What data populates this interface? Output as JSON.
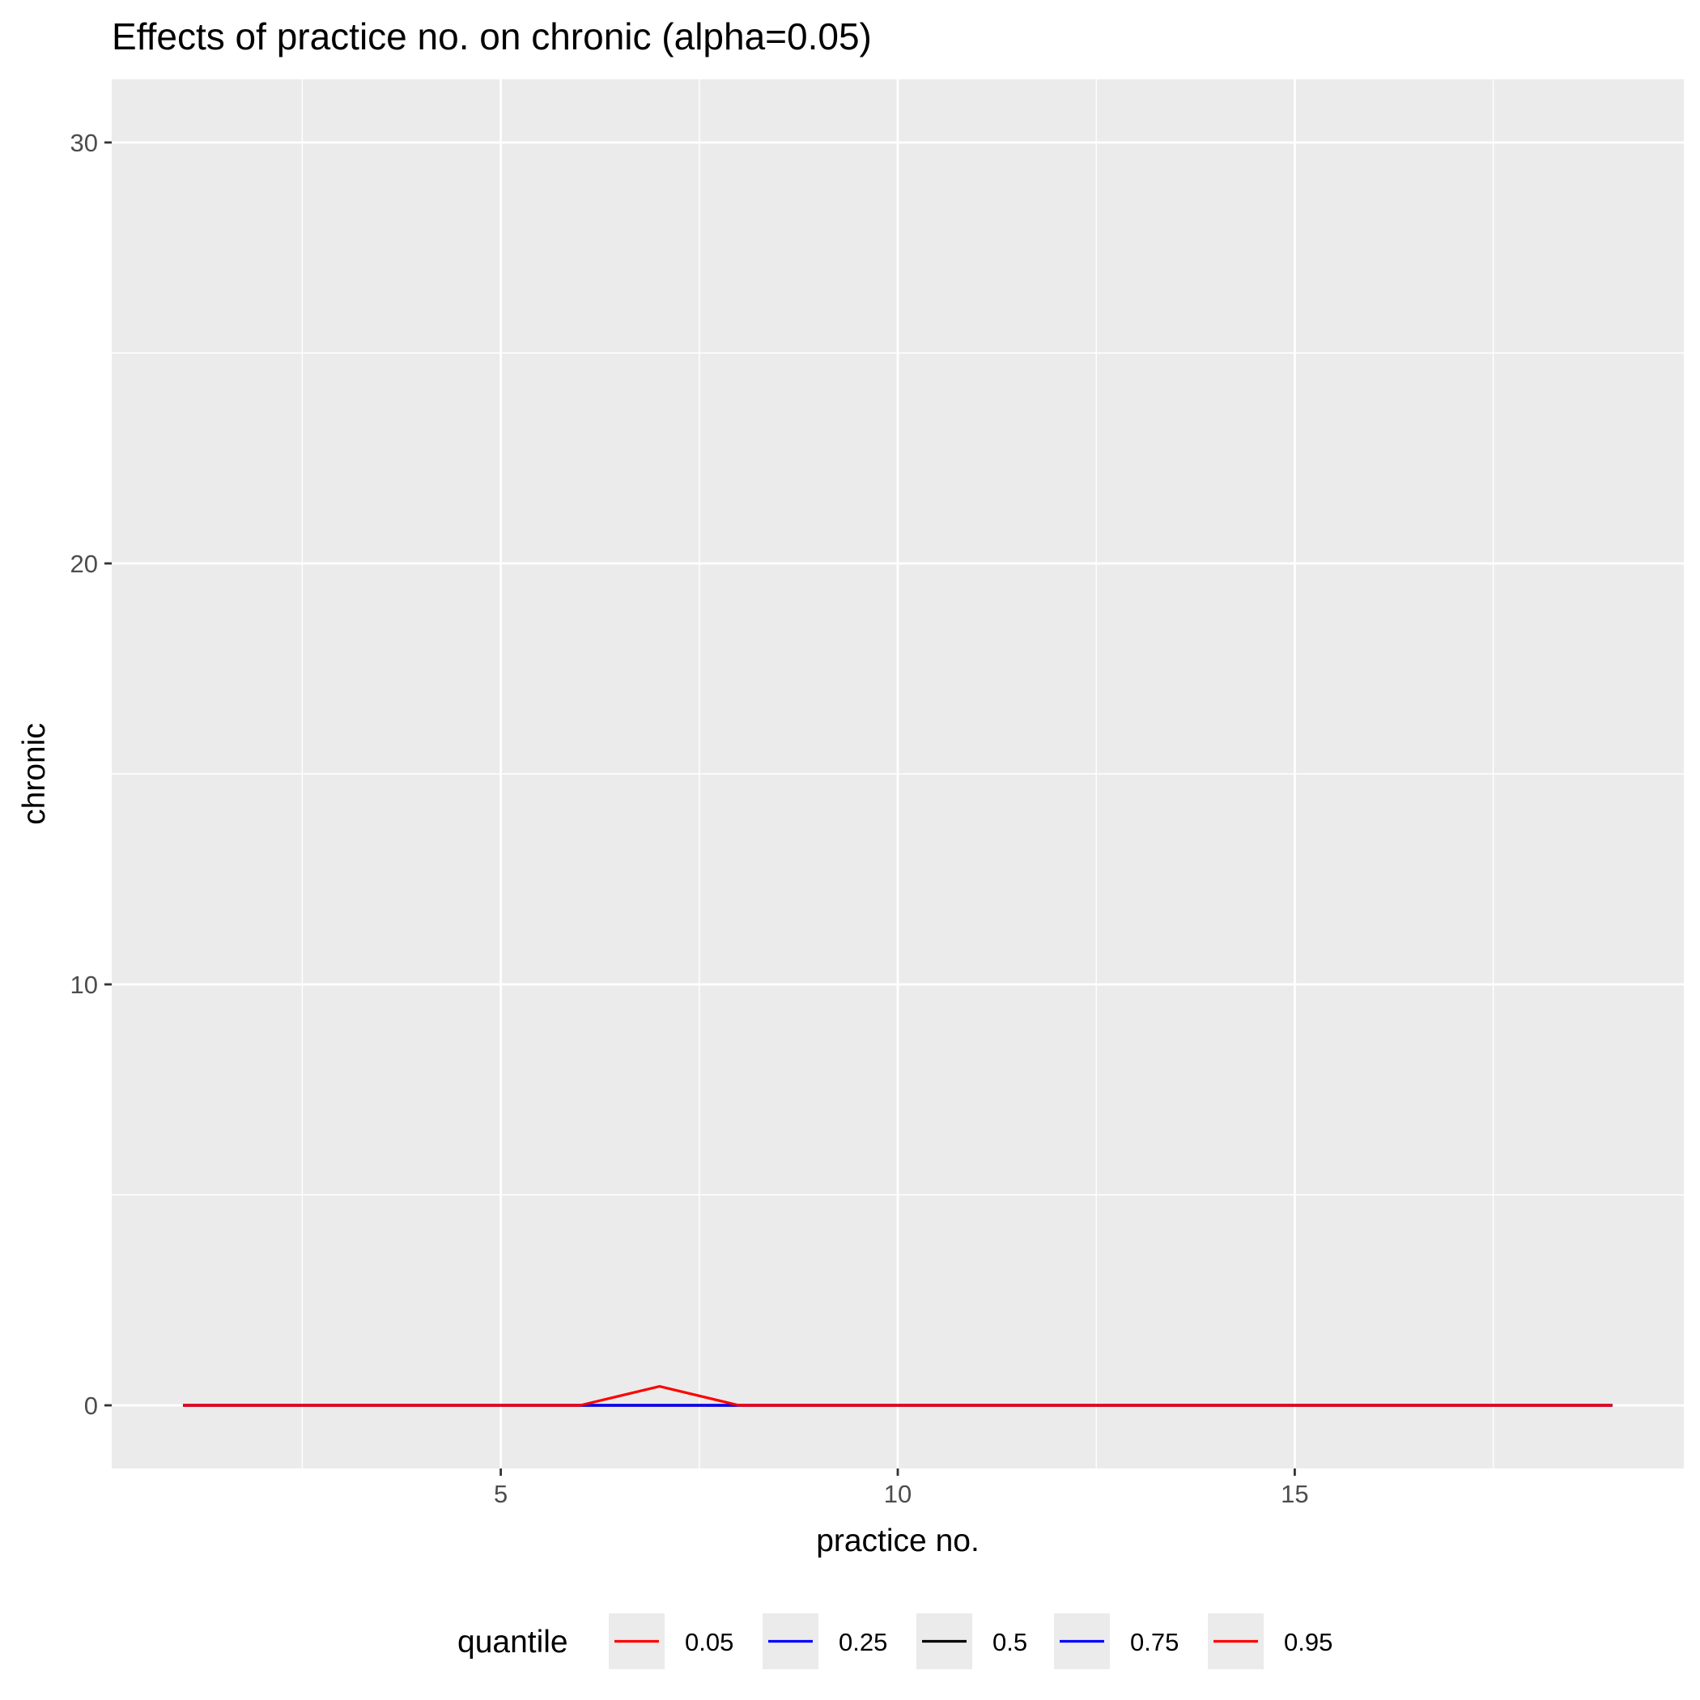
{
  "chart_data": {
    "type": "line",
    "title": "Effects of practice no. on chronic (alpha=0.05)",
    "xlabel": "practice no.",
    "ylabel": "chronic",
    "xlim": [
      0.1,
      19.9
    ],
    "ylim": [
      -1.5,
      31.5
    ],
    "x_ticks": [
      5,
      10,
      15
    ],
    "y_ticks": [
      0,
      10,
      20,
      30
    ],
    "grid": true,
    "panel_background": "#ebebeb",
    "legend": {
      "title": "quantile",
      "position": "bottom"
    },
    "x": [
      1,
      2,
      3,
      4,
      5,
      6,
      7,
      8,
      9,
      10,
      11,
      12,
      13,
      14,
      15,
      16,
      17,
      18,
      19
    ],
    "series": [
      {
        "name": "0.05",
        "color": "#ff0000",
        "values": [
          0,
          0,
          0,
          0,
          0,
          0,
          0,
          0,
          0,
          0,
          0,
          0,
          0,
          0,
          0,
          0,
          0,
          0,
          0
        ]
      },
      {
        "name": "0.25",
        "color": "#0000ff",
        "values": [
          0,
          0,
          0,
          0,
          0,
          0,
          0,
          0,
          0,
          0,
          0,
          0,
          0,
          0,
          0,
          0,
          0,
          0,
          0
        ]
      },
      {
        "name": "0.5",
        "color": "#000000",
        "values": [
          0,
          0,
          0,
          0,
          0,
          0,
          0,
          0,
          0,
          0,
          0,
          0,
          0,
          0,
          0,
          0,
          0,
          0,
          0
        ]
      },
      {
        "name": "0.75",
        "color": "#0000ff",
        "values": [
          0,
          0,
          0,
          0,
          0,
          0,
          0,
          0,
          0,
          0,
          0,
          0,
          0,
          0,
          0,
          0,
          0,
          0,
          0
        ]
      },
      {
        "name": "0.95",
        "color": "#ff0000",
        "values": [
          0,
          0,
          0,
          0,
          0,
          0,
          0.45,
          0,
          0,
          0,
          0,
          0,
          0,
          0,
          0,
          0,
          0,
          0,
          0
        ]
      }
    ]
  }
}
